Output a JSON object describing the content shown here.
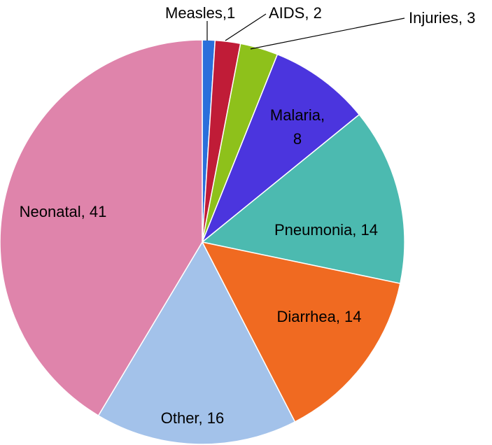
{
  "chart_data": {
    "type": "pie",
    "title": "",
    "total": 99,
    "slices": [
      {
        "label": "Measles",
        "value": 1,
        "display": "Measles,1",
        "color": "#2a6fdb"
      },
      {
        "label": "AIDS",
        "value": 2,
        "display": "AIDS, 2",
        "color": "#c01c37"
      },
      {
        "label": "Injuries",
        "value": 3,
        "display": "Injuries, 3",
        "color": "#8ec11b"
      },
      {
        "label": "Malaria",
        "value": 8,
        "display_lines": [
          "Malaria,",
          "8"
        ],
        "color": "#4b35de"
      },
      {
        "label": "Pneumonia",
        "value": 14,
        "display": "Pneumonia, 14",
        "color": "#4cbab0"
      },
      {
        "label": "Diarrhea",
        "value": 14,
        "display": "Diarrhea, 14",
        "color": "#f06a21"
      },
      {
        "label": "Other",
        "value": 16,
        "display": "Other, 16",
        "color": "#a3c2ea"
      },
      {
        "label": "Neonatal",
        "value": 41,
        "display": "Neonatal, 41",
        "color": "#df84ab"
      }
    ]
  }
}
